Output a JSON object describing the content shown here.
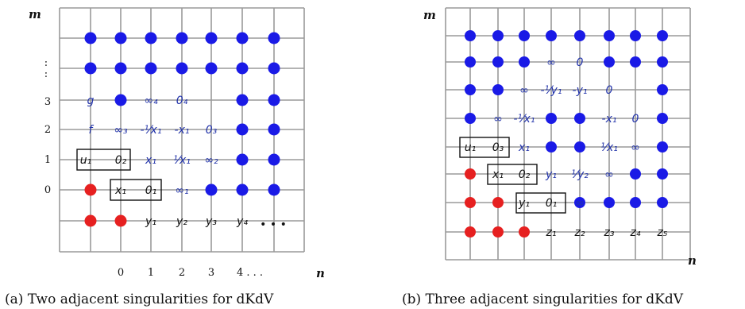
{
  "colors": {
    "grid": "#9a9a9a",
    "blue_dot": "#1a1ae6",
    "red_dot": "#e62020",
    "ink_blue": "#2233aa",
    "ink_black": "#111111"
  },
  "panel_a": {
    "axis_m": "m",
    "axis_n": "n",
    "m_ticks": [
      ":",
      ":",
      "3",
      "2",
      "1",
      "0"
    ],
    "n_ticks": [
      "0",
      "1",
      "2",
      "3",
      "4 . . ."
    ],
    "caption": "(a) Two adjacent singularities for dKdV",
    "notes": [
      {
        "t": "g",
        "c": "blue"
      },
      {
        "t": "∞₄",
        "c": "blue"
      },
      {
        "t": "0₄",
        "c": "blue"
      },
      {
        "t": "f",
        "c": "blue"
      },
      {
        "t": "∞₃",
        "c": "blue"
      },
      {
        "t": "-¹⁄x₁",
        "c": "blue"
      },
      {
        "t": "-x₁",
        "c": "blue"
      },
      {
        "t": "0₃",
        "c": "blue"
      },
      {
        "t": "u₁",
        "c": "black"
      },
      {
        "t": "0₂",
        "c": "black"
      },
      {
        "t": "x₁",
        "c": "blue"
      },
      {
        "t": "¹⁄x₁",
        "c": "blue"
      },
      {
        "t": "∞₂",
        "c": "blue"
      },
      {
        "t": "x₁",
        "c": "black"
      },
      {
        "t": "0₁",
        "c": "black"
      },
      {
        "t": "∞₁",
        "c": "blue"
      },
      {
        "t": "y₁",
        "c": "black"
      },
      {
        "t": "y₂",
        "c": "black"
      },
      {
        "t": "y₃",
        "c": "black"
      },
      {
        "t": "y₄",
        "c": "black"
      },
      {
        "t": "• • •",
        "c": "black"
      }
    ]
  },
  "panel_b": {
    "axis_m": "m",
    "axis_n": "n",
    "caption": "(b) Three adjacent singularities for dKdV",
    "notes": [
      {
        "t": "∞",
        "c": "blue"
      },
      {
        "t": "0",
        "c": "blue"
      },
      {
        "t": "∞",
        "c": "blue"
      },
      {
        "t": "-¹⁄y₁",
        "c": "blue"
      },
      {
        "t": "-y₁",
        "c": "blue"
      },
      {
        "t": "0",
        "c": "blue"
      },
      {
        "t": "∞",
        "c": "blue"
      },
      {
        "t": "-¹⁄x₁",
        "c": "blue"
      },
      {
        "t": "-x₁",
        "c": "blue"
      },
      {
        "t": "0",
        "c": "blue"
      },
      {
        "t": "u₁",
        "c": "black"
      },
      {
        "t": "0₃",
        "c": "black"
      },
      {
        "t": "x₁",
        "c": "blue"
      },
      {
        "t": "¹⁄x₁",
        "c": "blue"
      },
      {
        "t": "∞",
        "c": "blue"
      },
      {
        "t": "x₁",
        "c": "black"
      },
      {
        "t": "0₂",
        "c": "black"
      },
      {
        "t": "y₁",
        "c": "blue"
      },
      {
        "t": "¹⁄y₂",
        "c": "blue"
      },
      {
        "t": "∞",
        "c": "blue"
      },
      {
        "t": "y₁",
        "c": "black"
      },
      {
        "t": "0₁",
        "c": "black"
      },
      {
        "t": "∞",
        "c": "blue"
      },
      {
        "t": "z₁",
        "c": "black"
      },
      {
        "t": "z₂",
        "c": "black"
      },
      {
        "t": "z₃",
        "c": "black"
      },
      {
        "t": "z₄",
        "c": "black"
      },
      {
        "t": "z₅",
        "c": "black"
      }
    ]
  }
}
